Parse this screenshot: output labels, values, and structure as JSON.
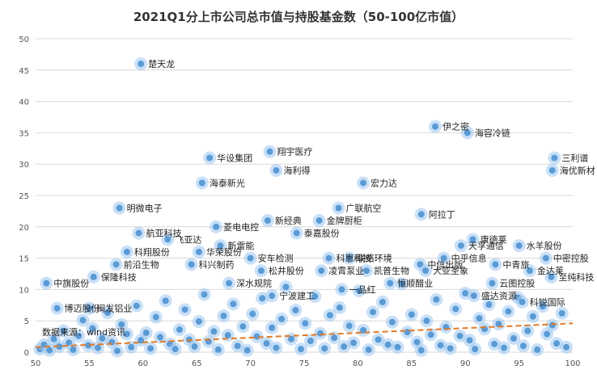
{
  "chart_data": {
    "type": "scatter",
    "title": "2021Q1分上市公司总市值与持股基金数（50-100亿市值）",
    "xlim": [
      50,
      100
    ],
    "ylim": [
      0,
      50
    ],
    "xticks": [
      50,
      55,
      60,
      65,
      70,
      75,
      80,
      85,
      90,
      95,
      100
    ],
    "yticks": [
      0,
      5,
      10,
      15,
      20,
      25,
      30,
      35,
      40,
      45,
      50
    ],
    "grid": true,
    "trendline": {
      "style": "dashed",
      "color": "#e07b2a",
      "x": [
        50,
        100
      ],
      "y": [
        0.8,
        4.6
      ]
    },
    "source_note": "数据来源：wind资讯",
    "colors": {
      "point": "#5b9bd5",
      "halo": "#9cc7f0",
      "trend": "#e07b2a",
      "grid": "#d9d9d9"
    },
    "labeled_points": [
      {
        "x": 59.8,
        "y": 46,
        "label": "楚天龙"
      },
      {
        "x": 87.2,
        "y": 36,
        "label": "伊之密"
      },
      {
        "x": 90.2,
        "y": 35,
        "label": "海容冷链"
      },
      {
        "x": 98.3,
        "y": 31,
        "label": "三利谱"
      },
      {
        "x": 98.1,
        "y": 29,
        "label": "海优新材"
      },
      {
        "x": 71.8,
        "y": 32,
        "label": "翔宇医疗"
      },
      {
        "x": 66.2,
        "y": 31,
        "label": "华设集团"
      },
      {
        "x": 72.4,
        "y": 29,
        "label": "海利得"
      },
      {
        "x": 65.5,
        "y": 27,
        "label": "海泰新光"
      },
      {
        "x": 80.5,
        "y": 27,
        "label": "宏力达"
      },
      {
        "x": 57.8,
        "y": 23,
        "label": "明微电子"
      },
      {
        "x": 78.2,
        "y": 23,
        "label": "广联航空"
      },
      {
        "x": 85.9,
        "y": 22,
        "label": "阿拉丁"
      },
      {
        "x": 71.6,
        "y": 21,
        "label": "新经典"
      },
      {
        "x": 76.4,
        "y": 21,
        "label": "金牌厨柜"
      },
      {
        "x": 66.8,
        "y": 20,
        "label": "菱电电控"
      },
      {
        "x": 59.6,
        "y": 19,
        "label": "航亚科技"
      },
      {
        "x": 74.3,
        "y": 19,
        "label": "泰嘉股份"
      },
      {
        "x": 62.3,
        "y": 18,
        "label": "飞亚达"
      },
      {
        "x": 90.7,
        "y": 18,
        "label": "康德莱"
      },
      {
        "x": 89.6,
        "y": 17,
        "label": "天孚通信"
      },
      {
        "x": 95.0,
        "y": 17,
        "label": "水羊股份"
      },
      {
        "x": 67.2,
        "y": 17,
        "label": "新雷能"
      },
      {
        "x": 58.5,
        "y": 16,
        "label": "科翔股份"
      },
      {
        "x": 65.2,
        "y": 16,
        "label": "华荣股份"
      },
      {
        "x": 97.5,
        "y": 15,
        "label": "中密控股"
      },
      {
        "x": 70.0,
        "y": 15,
        "label": "安车检测"
      },
      {
        "x": 77.3,
        "y": 15,
        "label": "科思科技"
      },
      {
        "x": 79.2,
        "y": 15,
        "label": "联络环境"
      },
      {
        "x": 88.0,
        "y": 15,
        "label": "中乎信息"
      },
      {
        "x": 57.5,
        "y": 14,
        "label": "前沿生物"
      },
      {
        "x": 64.5,
        "y": 14,
        "label": "科兴制药"
      },
      {
        "x": 92.8,
        "y": 14,
        "label": "中青旅"
      },
      {
        "x": 85.8,
        "y": 14,
        "label": "中信出版"
      },
      {
        "x": 96.0,
        "y": 13,
        "label": "金达莱"
      },
      {
        "x": 80.8,
        "y": 13,
        "label": "凯普生物"
      },
      {
        "x": 71.0,
        "y": 13,
        "label": "松井股份"
      },
      {
        "x": 76.6,
        "y": 13,
        "label": "凌霄泵业"
      },
      {
        "x": 86.3,
        "y": 13,
        "label": "大亚圣象"
      },
      {
        "x": 98.0,
        "y": 12,
        "label": "至纯科技"
      },
      {
        "x": 55.4,
        "y": 12,
        "label": "保隆科技"
      },
      {
        "x": 92.5,
        "y": 11,
        "label": "云图控股"
      },
      {
        "x": 51.0,
        "y": 11,
        "label": "中旗股份"
      },
      {
        "x": 68.0,
        "y": 11,
        "label": "深水规院"
      },
      {
        "x": 83.0,
        "y": 11,
        "label": "恒顺醋业"
      },
      {
        "x": 78.5,
        "y": 10,
        "label": "一品红"
      },
      {
        "x": 90.8,
        "y": 9,
        "label": "盛达资源"
      },
      {
        "x": 72.0,
        "y": 9,
        "label": "宁波建工"
      },
      {
        "x": 95.3,
        "y": 8,
        "label": "科锐国际"
      },
      {
        "x": 55.0,
        "y": 7,
        "label": "闽发铝业"
      },
      {
        "x": 52.0,
        "y": 7,
        "label": "博迈股份"
      }
    ],
    "cluster_points": [
      [
        50.4,
        0.5
      ],
      [
        50.8,
        1.2
      ],
      [
        51.3,
        0.3
      ],
      [
        51.7,
        2.1
      ],
      [
        52.2,
        0.9
      ],
      [
        52.6,
        3.4
      ],
      [
        53.1,
        1.5
      ],
      [
        53.5,
        0.4
      ],
      [
        54.0,
        2.6
      ],
      [
        54.4,
        5.1
      ],
      [
        54.9,
        1.1
      ],
      [
        55.3,
        3.8
      ],
      [
        55.8,
        0.7
      ],
      [
        56.2,
        2.2
      ],
      [
        56.7,
        6.3
      ],
      [
        57.1,
        1.6
      ],
      [
        57.6,
        0.2
      ],
      [
        58.0,
        4.4
      ],
      [
        58.5,
        2.9
      ],
      [
        58.9,
        0.8
      ],
      [
        59.4,
        7.4
      ],
      [
        59.8,
        1.9
      ],
      [
        60.3,
        3.1
      ],
      [
        60.7,
        0.6
      ],
      [
        61.2,
        5.6
      ],
      [
        61.6,
        2.4
      ],
      [
        62.1,
        8.2
      ],
      [
        62.5,
        1.3
      ],
      [
        63.0,
        0.5
      ],
      [
        63.4,
        3.6
      ],
      [
        63.9,
        6.8
      ],
      [
        64.3,
        2.0
      ],
      [
        64.8,
        0.9
      ],
      [
        65.2,
        4.9
      ],
      [
        65.7,
        9.2
      ],
      [
        66.1,
        1.7
      ],
      [
        66.6,
        3.3
      ],
      [
        67.0,
        0.4
      ],
      [
        67.5,
        5.8
      ],
      [
        67.9,
        2.7
      ],
      [
        68.4,
        7.7
      ],
      [
        68.8,
        1.0
      ],
      [
        69.3,
        4.1
      ],
      [
        69.7,
        0.3
      ],
      [
        70.2,
        6.1
      ],
      [
        70.6,
        2.5
      ],
      [
        71.1,
        8.6
      ],
      [
        71.5,
        1.4
      ],
      [
        72.0,
        3.9
      ],
      [
        72.4,
        0.7
      ],
      [
        72.9,
        5.3
      ],
      [
        73.3,
        10.4
      ],
      [
        73.8,
        2.1
      ],
      [
        74.2,
        6.7
      ],
      [
        74.7,
        0.5
      ],
      [
        75.1,
        4.6
      ],
      [
        75.6,
        1.8
      ],
      [
        76.0,
        8.9
      ],
      [
        76.5,
        3.0
      ],
      [
        76.9,
        0.6
      ],
      [
        77.4,
        5.9
      ],
      [
        77.8,
        2.3
      ],
      [
        78.3,
        7.1
      ],
      [
        78.7,
        0.9
      ],
      [
        79.2,
        4.2
      ],
      [
        79.6,
        1.5
      ],
      [
        80.1,
        9.8
      ],
      [
        80.5,
        3.5
      ],
      [
        81.0,
        0.4
      ],
      [
        81.4,
        6.4
      ],
      [
        81.9,
        2.0
      ],
      [
        82.3,
        8.0
      ],
      [
        82.8,
        1.2
      ],
      [
        83.2,
        4.8
      ],
      [
        83.7,
        0.8
      ],
      [
        84.1,
        10.9
      ],
      [
        84.6,
        3.2
      ],
      [
        85.0,
        6.0
      ],
      [
        85.5,
        1.6
      ],
      [
        85.9,
        0.3
      ],
      [
        86.4,
        5.0
      ],
      [
        86.8,
        2.8
      ],
      [
        87.3,
        8.4
      ],
      [
        87.7,
        1.1
      ],
      [
        88.2,
        4.0
      ],
      [
        88.6,
        0.6
      ],
      [
        89.1,
        6.9
      ],
      [
        89.5,
        2.6
      ],
      [
        90.0,
        9.4
      ],
      [
        90.4,
        1.9
      ],
      [
        90.9,
        0.5
      ],
      [
        91.3,
        5.4
      ],
      [
        91.8,
        3.7
      ],
      [
        92.2,
        7.6
      ],
      [
        92.7,
        1.3
      ],
      [
        93.1,
        4.5
      ],
      [
        93.6,
        0.7
      ],
      [
        94.0,
        6.5
      ],
      [
        94.5,
        2.2
      ],
      [
        94.9,
        8.7
      ],
      [
        95.4,
        1.0
      ],
      [
        95.8,
        3.4
      ],
      [
        96.3,
        5.7
      ],
      [
        96.7,
        0.4
      ],
      [
        97.2,
        7.3
      ],
      [
        97.6,
        2.9
      ],
      [
        98.1,
        4.3
      ],
      [
        98.5,
        1.4
      ],
      [
        99.0,
        6.2
      ],
      [
        99.4,
        0.8
      ]
    ]
  }
}
